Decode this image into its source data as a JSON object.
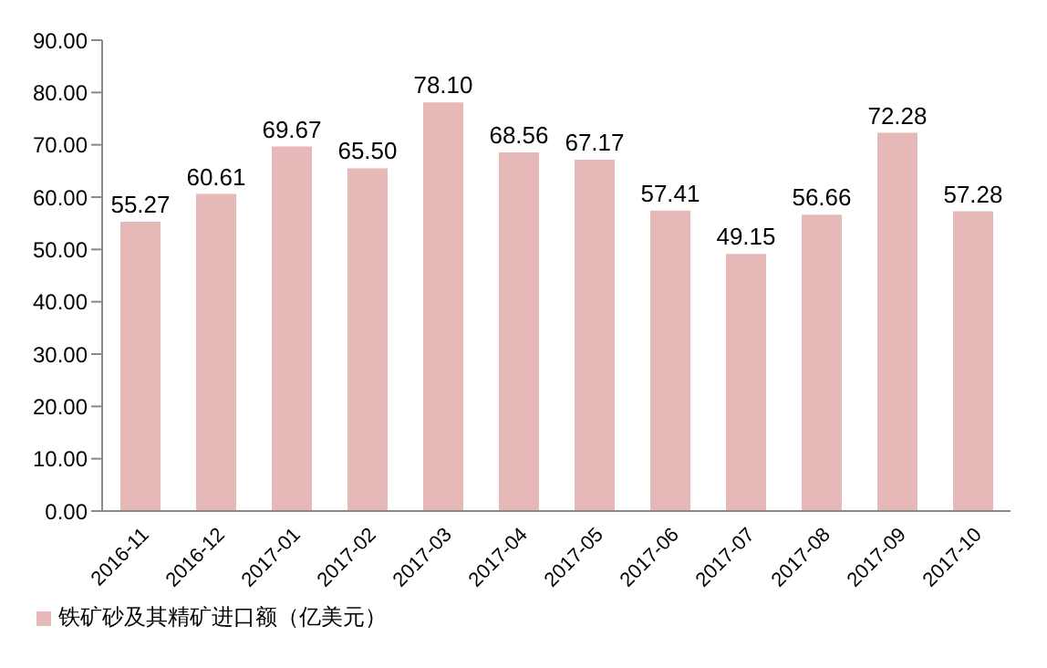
{
  "chart_data": {
    "type": "bar",
    "categories": [
      "2016-11",
      "2016-12",
      "2017-01",
      "2017-02",
      "2017-03",
      "2017-04",
      "2017-05",
      "2017-06",
      "2017-07",
      "2017-08",
      "2017-09",
      "2017-10"
    ],
    "series": [
      {
        "name": "铁矿砂及其精矿进口额（亿美元）",
        "color": "#e6b9b8",
        "values": [
          55.27,
          60.61,
          69.67,
          65.5,
          78.1,
          68.56,
          67.17,
          57.41,
          49.15,
          56.66,
          72.28,
          57.28
        ]
      }
    ],
    "value_labels": [
      "55.27",
      "60.61",
      "69.67",
      "65.50",
      "78.10",
      "68.56",
      "67.17",
      "57.41",
      "49.15",
      "56.66",
      "72.28",
      "57.28"
    ],
    "ylim": [
      0,
      90
    ],
    "yticks": [
      {
        "value": 0,
        "label": "0.00"
      },
      {
        "value": 10,
        "label": "10.00"
      },
      {
        "value": 20,
        "label": "20.00"
      },
      {
        "value": 30,
        "label": "30.00"
      },
      {
        "value": 40,
        "label": "40.00"
      },
      {
        "value": 50,
        "label": "50.00"
      },
      {
        "value": 60,
        "label": "60.00"
      },
      {
        "value": 70,
        "label": "70.00"
      },
      {
        "value": 80,
        "label": "80.00"
      },
      {
        "value": 90,
        "label": "90.00"
      }
    ],
    "grid": false,
    "legend": "bottom left"
  }
}
